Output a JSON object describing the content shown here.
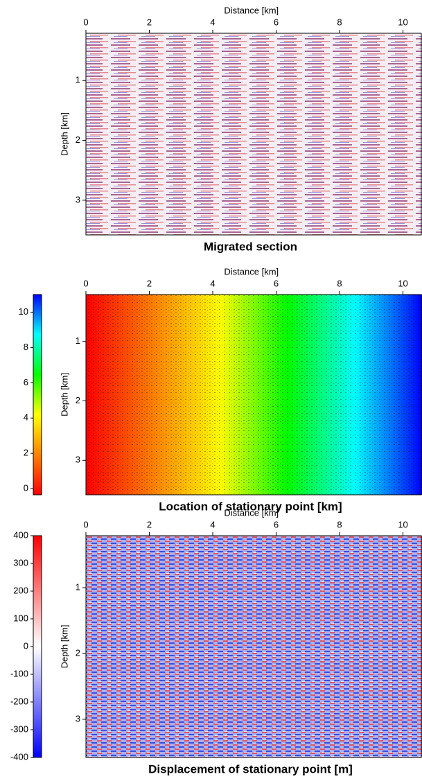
{
  "chart_data": [
    {
      "type": "image",
      "title": "Migrated section",
      "x_label": "Distance [km]",
      "y_label": "Depth [km]",
      "xlim": [
        0,
        10.6
      ],
      "xticks": [
        0,
        2,
        4,
        6,
        8,
        10
      ],
      "ylim": [
        0.21,
        3.58
      ],
      "yticks": [
        1,
        2,
        3
      ],
      "y_inverted": true,
      "colormap": [
        "#0000ff",
        "#ffffff",
        "#ff0000"
      ],
      "colorbar": false
    },
    {
      "type": "image",
      "title": "Location of stationary point [km]",
      "x_label": "Distance [km]",
      "y_label": "Depth [km]",
      "xlim": [
        0,
        10.6
      ],
      "xticks": [
        0,
        2,
        4,
        6,
        8,
        10
      ],
      "ylim": [
        0.21,
        3.58
      ],
      "yticks": [
        1,
        2,
        3
      ],
      "y_inverted": true,
      "colormap": [
        "#ff0000",
        "#ff8000",
        "#ffff00",
        "#00ff00",
        "#00ffff",
        "#0000ff"
      ],
      "colorbar": true,
      "clim": [
        -0.35,
        11
      ],
      "cticks": [
        0,
        2,
        4,
        6,
        8,
        10
      ]
    },
    {
      "type": "image",
      "title": "Displacement of stationary point [m]",
      "x_label": "Distance [km]",
      "y_label": "Depth [km]",
      "xlim": [
        0,
        10.6
      ],
      "xticks": [
        0,
        2,
        4,
        6,
        8,
        10
      ],
      "ylim": [
        0.21,
        3.58
      ],
      "yticks": [
        1,
        2,
        3
      ],
      "y_inverted": true,
      "colormap": [
        "#0000ff",
        "#ffffff",
        "#ff0000"
      ],
      "colorbar": true,
      "clim": [
        -400,
        400
      ],
      "cticks": [
        -400,
        -300,
        -200,
        -100,
        0,
        100,
        200,
        300,
        400
      ]
    }
  ]
}
